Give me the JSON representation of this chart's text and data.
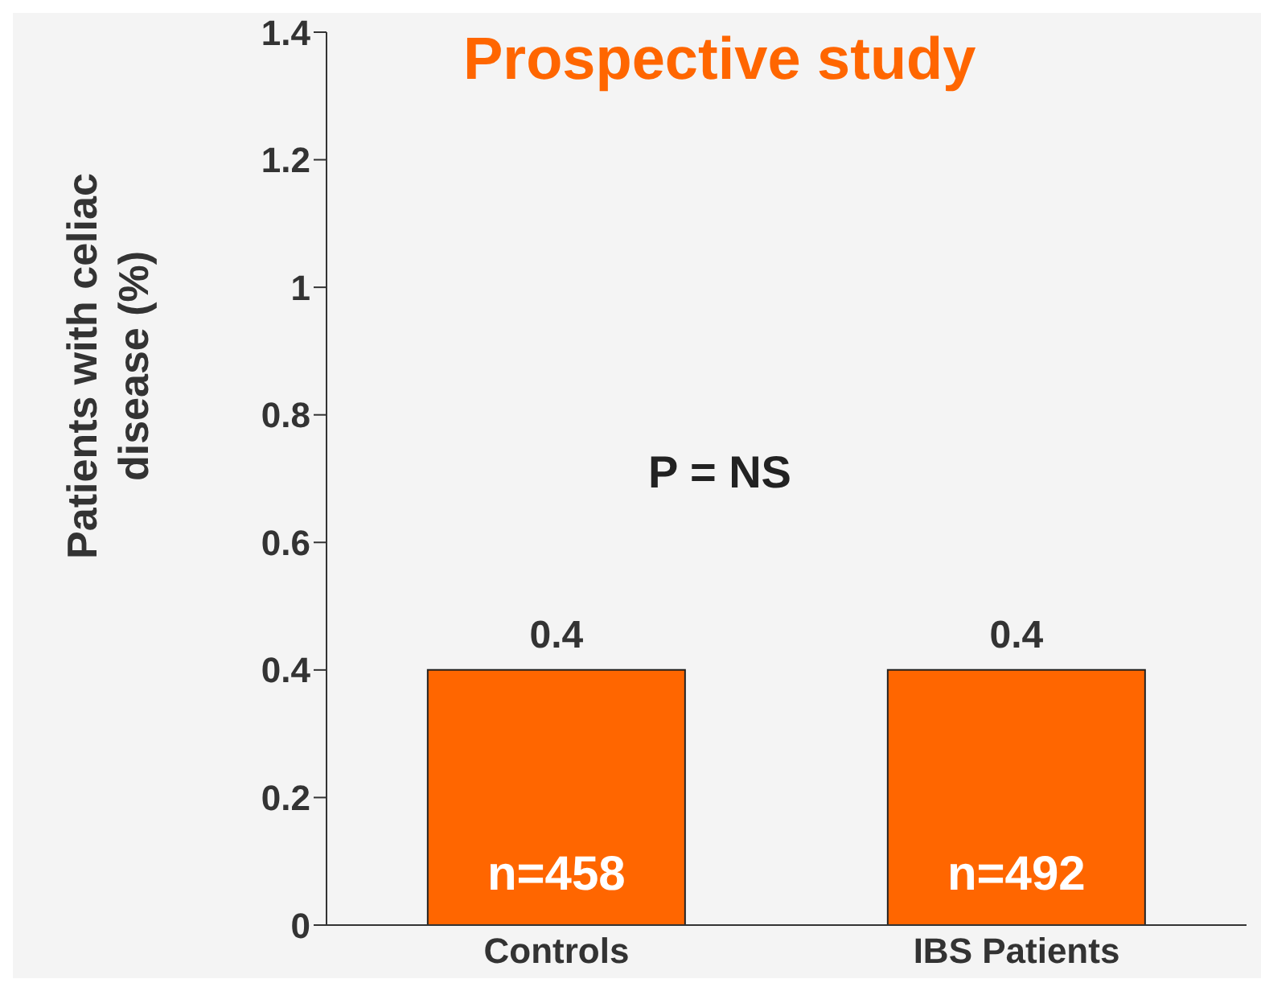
{
  "chart_data": {
    "type": "bar",
    "title": "Prospective study",
    "ylabel": "Patients with celiac disease (%)",
    "categories": [
      "Controls",
      "IBS Patients"
    ],
    "values": [
      0.4,
      0.4
    ],
    "color": "#ff6600",
    "ylim": [
      0,
      1.4
    ],
    "yticks": [
      0,
      0.2,
      0.4,
      0.6,
      0.8,
      1,
      1.2,
      1.4
    ],
    "grid": false,
    "data_labels": true,
    "legend": false,
    "annotations": [
      "P = NS",
      "n=458",
      "n=492"
    ]
  }
}
